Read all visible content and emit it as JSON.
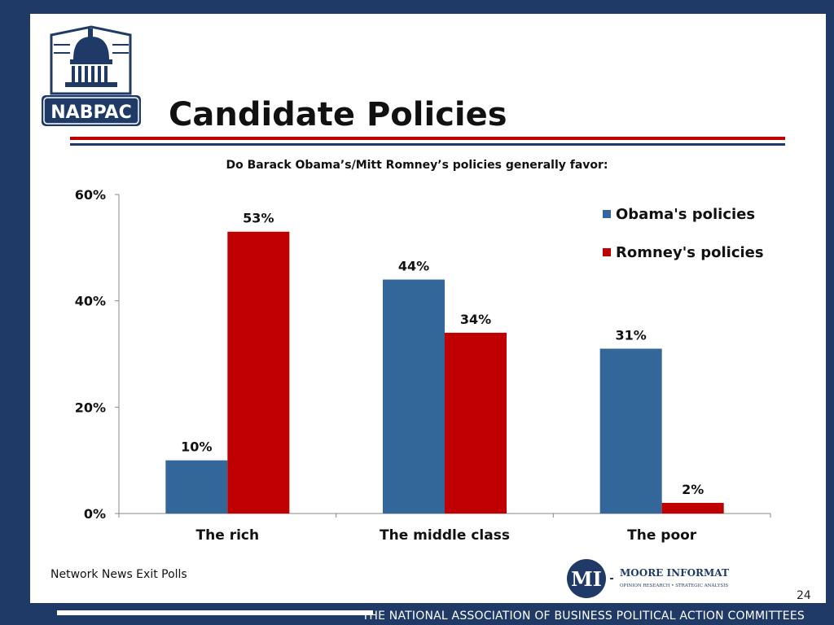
{
  "slide": {
    "title": "Candidate Policies",
    "question": "Do Barack Obama’s/Mitt Romney’s policies generally favor:",
    "source": "Network News Exit Polls",
    "page_number": "24",
    "footer": "THE NATIONAL ASSOCIATION OF BUSINESS POLITICAL ACTION COMMITTEES",
    "logo_text": "NABPAC",
    "moore_logo": {
      "name": "MOORE INFORMATION",
      "tagline": "OPINION RESEARCH • STRATEGIC ANALYSIS",
      "mark": "MI"
    }
  },
  "colors": {
    "navy": "#1f3a66",
    "red": "#c00000",
    "obama": "#336699",
    "romney": "#c00000"
  },
  "chart_data": {
    "type": "bar",
    "categories": [
      "The rich",
      "The middle class",
      "The poor"
    ],
    "series": [
      {
        "name": "Obama's policies",
        "values": [
          10,
          44,
          31
        ],
        "labels": [
          "10%",
          "44%",
          "31%"
        ],
        "color": "#336699"
      },
      {
        "name": "Romney's policies",
        "values": [
          53,
          34,
          2
        ],
        "labels": [
          "53%",
          "34%",
          "2%"
        ],
        "color": "#c00000"
      }
    ],
    "ylim": [
      0,
      60
    ],
    "yticks": [
      0,
      20,
      40,
      60
    ],
    "ytick_labels": [
      "0%",
      "20%",
      "40%",
      "60%"
    ],
    "legend": "top-right",
    "grid": false
  }
}
